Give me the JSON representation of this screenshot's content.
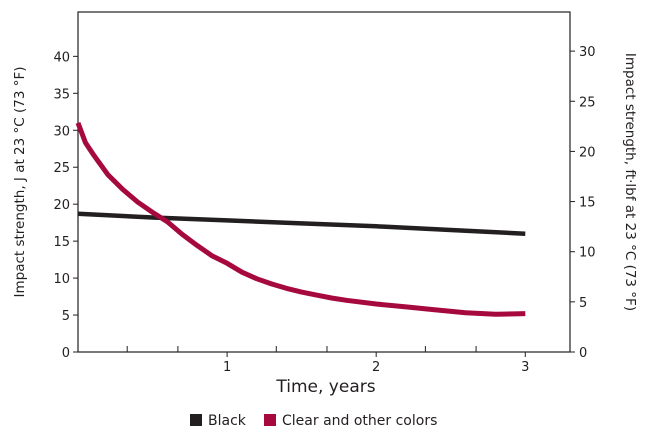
{
  "chart_data": {
    "type": "line",
    "xlabel": "Time, years",
    "ylabel_left": "Impact strength, J at 23 °C (73 °F)",
    "ylabel_right": "Impact strength, ft·lbf at 23 °C (73 °F)",
    "xlim": [
      0,
      3.3
    ],
    "ylim_left": [
      0,
      46
    ],
    "ylim_right": [
      0,
      33.9
    ],
    "x_ticks": [
      1,
      2,
      3
    ],
    "x_tick_labels": [
      "1",
      "2",
      "3"
    ],
    "x_minor_ticks": [
      0.33,
      0.67,
      1.33,
      1.67,
      2.33,
      2.67
    ],
    "y_left_ticks": [
      0,
      5,
      10,
      15,
      20,
      25,
      30,
      35,
      40
    ],
    "y_left_tick_labels": [
      "0",
      "5",
      "10",
      "15",
      "20",
      "25",
      "30",
      "35",
      "40"
    ],
    "y_right_ticks": [
      0,
      5,
      10,
      15,
      20,
      25,
      30
    ],
    "y_right_tick_labels": [
      "0",
      "5",
      "10",
      "15",
      "20",
      "25",
      "30"
    ],
    "grid": false,
    "legend_position": "bottom-center",
    "series": [
      {
        "name": "Black",
        "color": "#231f20",
        "x": [
          0,
          0.5,
          1,
          1.5,
          2,
          2.5,
          3
        ],
        "y": [
          18.7,
          18.2,
          17.8,
          17.4,
          17.0,
          16.5,
          16.0
        ]
      },
      {
        "name": "Clear and other colors",
        "color": "#a6093d",
        "x": [
          0,
          0.05,
          0.1,
          0.2,
          0.3,
          0.4,
          0.5,
          0.6,
          0.7,
          0.8,
          0.9,
          1.0,
          1.1,
          1.2,
          1.3,
          1.4,
          1.5,
          1.6,
          1.7,
          1.8,
          2.0,
          2.2,
          2.4,
          2.6,
          2.8,
          3.0
        ],
        "y": [
          31.0,
          28.3,
          26.8,
          24.0,
          22.0,
          20.3,
          18.9,
          17.6,
          15.9,
          14.4,
          13.0,
          12.0,
          10.8,
          9.9,
          9.2,
          8.6,
          8.1,
          7.7,
          7.3,
          7.0,
          6.5,
          6.1,
          5.7,
          5.3,
          5.1,
          5.2
        ]
      }
    ]
  }
}
